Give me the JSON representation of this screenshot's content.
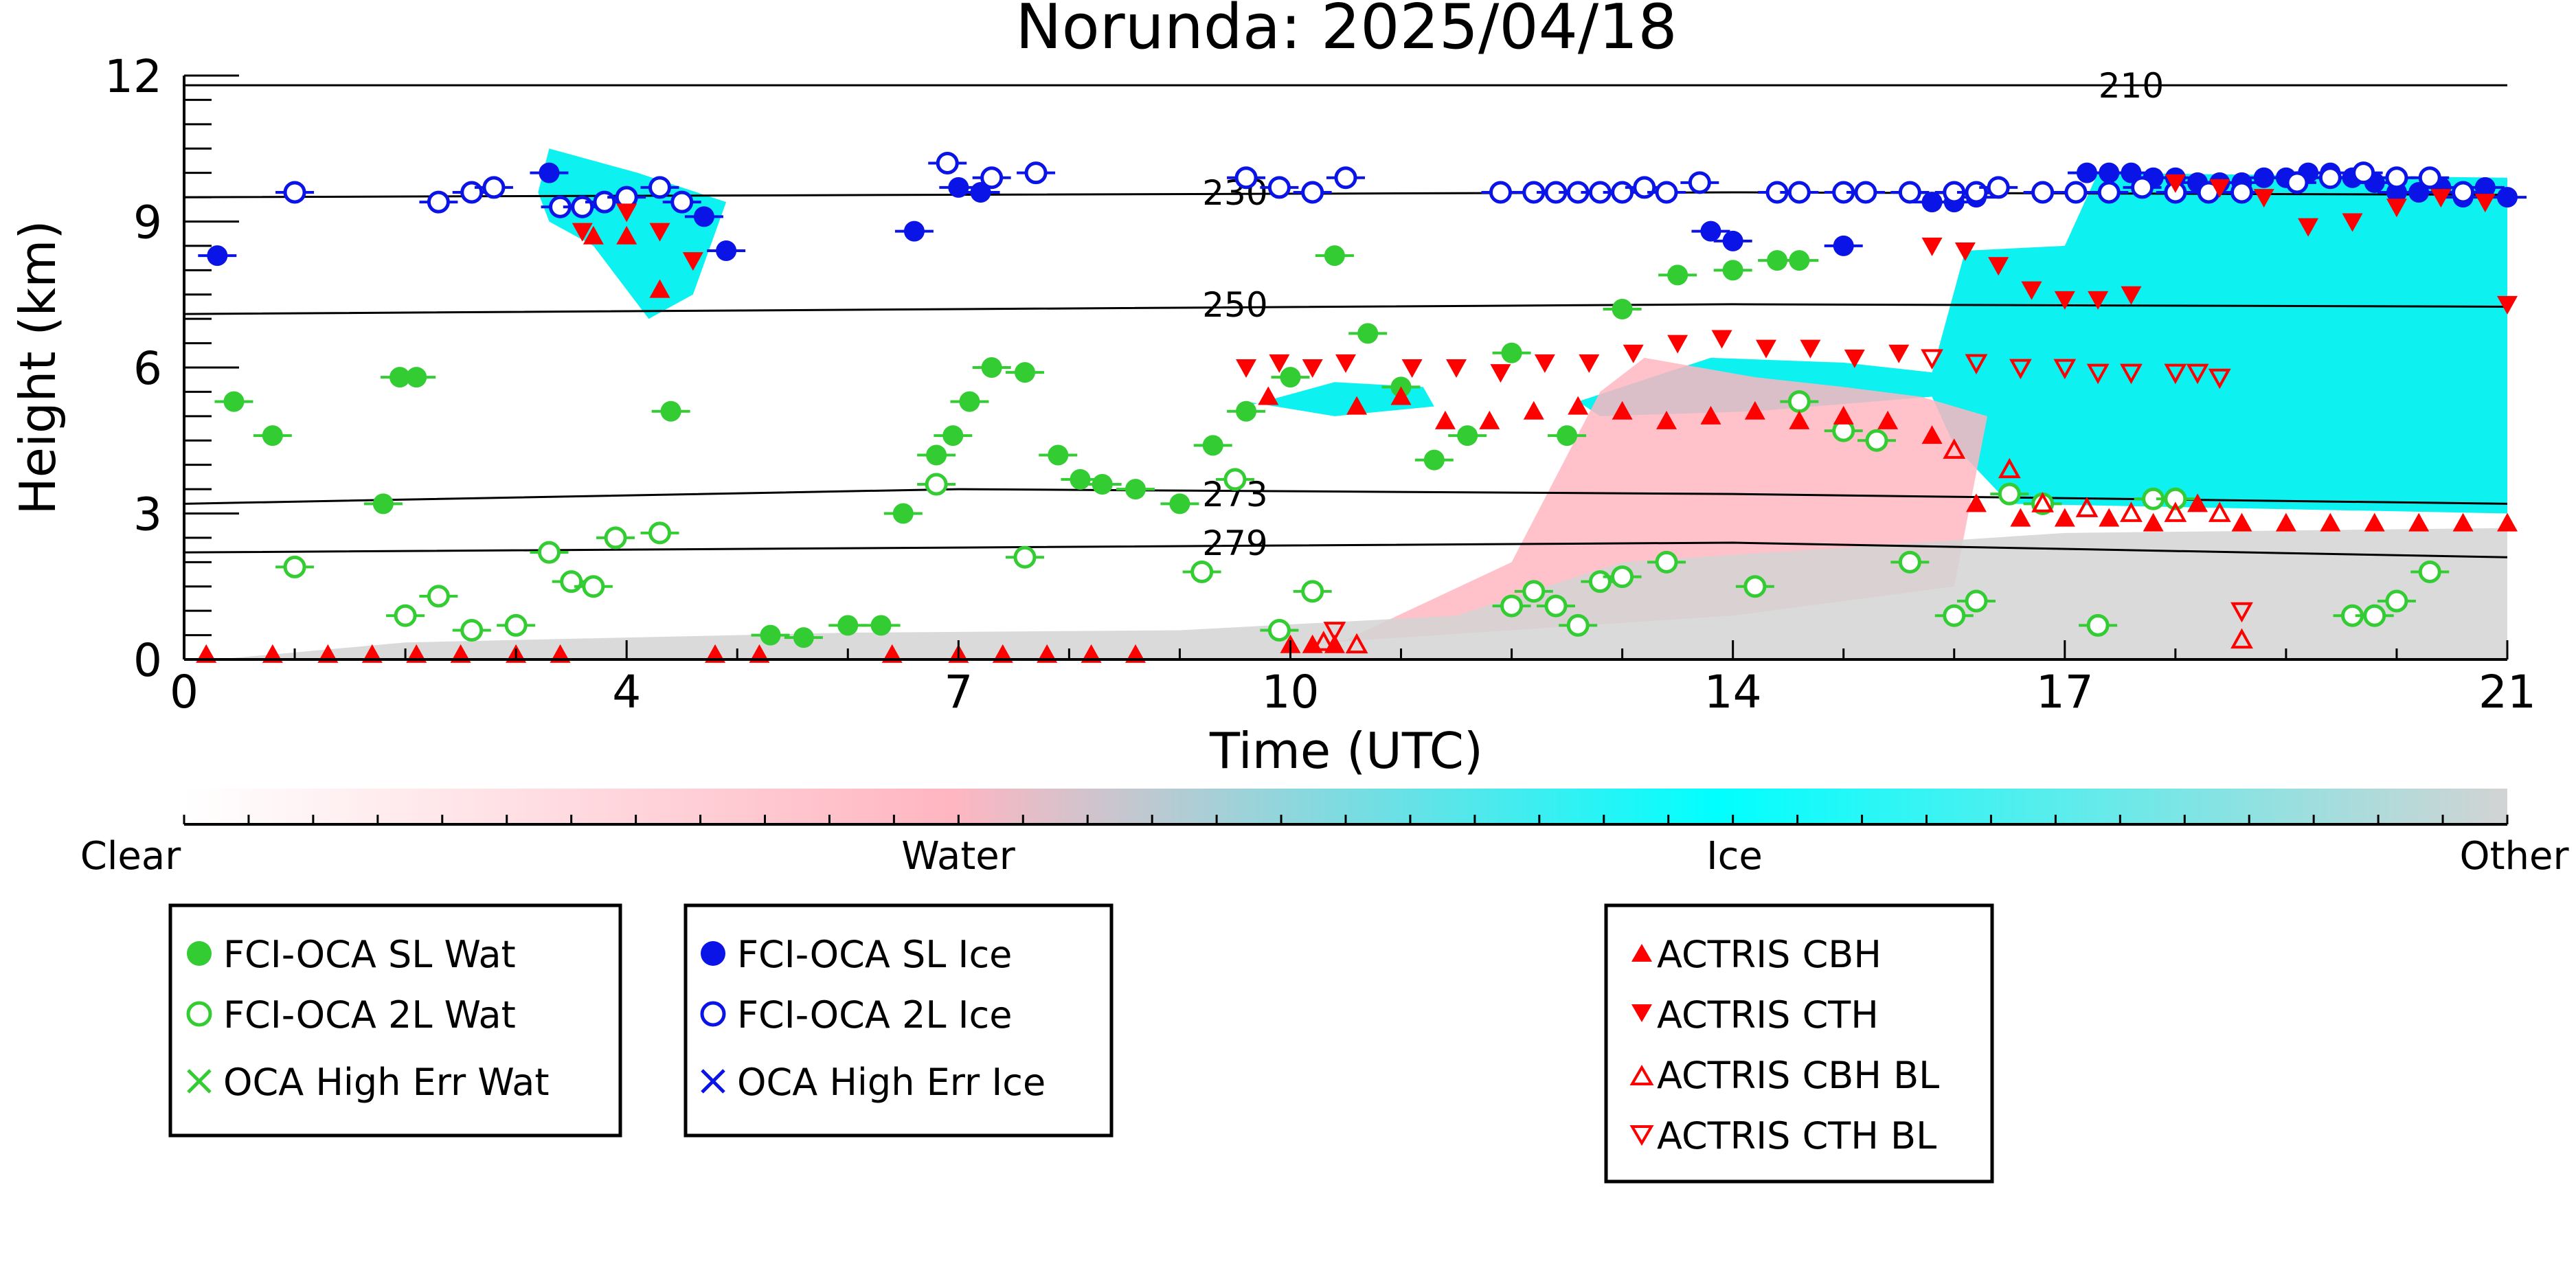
{
  "chart_data": {
    "type": "scatter",
    "title": "Norunda: 2025/04/18",
    "xlabel": "Time (UTC)",
    "ylabel": "Height (km)",
    "xlim": [
      0,
      21
    ],
    "ylim": [
      0,
      12
    ],
    "xticks": [
      0,
      4,
      7,
      10,
      14,
      17,
      21
    ],
    "yticks": [
      0,
      3,
      6,
      9,
      12
    ],
    "grid": false,
    "colorbar": {
      "labels": [
        "Clear",
        "Water",
        "Ice",
        "Other"
      ],
      "colors": [
        "#ffffff",
        "#ffb6c1",
        "#00ffff",
        "#d3d3d3"
      ]
    },
    "colors": {
      "water": "#33cc33",
      "ice": "#0a14e6",
      "actris": "#ff0000",
      "cloud_ice": "#00f0f0",
      "cloud_water": "#ffb6c1",
      "cloud_other": "#d3d3d3"
    },
    "isotherms": [
      {
        "label": "210",
        "label_x": 17.6,
        "y": [
          11.8,
          11.8,
          11.8,
          11.8
        ]
      },
      {
        "label": "230",
        "label_x": 9.5,
        "y": [
          9.5,
          9.55,
          9.6,
          9.55
        ]
      },
      {
        "label": "250",
        "label_x": 9.5,
        "y": [
          7.1,
          7.2,
          7.3,
          7.25
        ]
      },
      {
        "label": "273",
        "label_x": 9.5,
        "y": [
          3.2,
          3.5,
          3.4,
          3.2
        ]
      },
      {
        "label": "279",
        "label_x": 9.5,
        "y": [
          2.2,
          2.3,
          2.4,
          2.1
        ]
      }
    ],
    "isotherm_x": [
      0,
      7,
      14,
      21
    ],
    "series": [
      {
        "name": "FCI-OCA SL Wat",
        "marker": "filled-circle",
        "color": "#33cc33",
        "x": [
          0.45,
          0.8,
          1.8,
          1.95,
          2.1,
          4.4,
          5.3,
          5.6,
          6.0,
          6.3,
          6.5,
          6.8,
          6.95,
          7.1,
          7.3,
          7.6,
          7.9,
          8.1,
          8.3,
          8.6,
          9.0,
          9.3,
          9.6,
          10.0,
          10.4,
          10.7,
          11.0,
          11.3,
          11.6,
          12.0,
          12.5,
          13.0,
          13.5,
          14.0,
          14.4,
          14.6
        ],
        "y": [
          5.3,
          4.6,
          3.2,
          5.8,
          5.8,
          5.1,
          0.5,
          0.45,
          0.7,
          0.7,
          3.0,
          4.2,
          4.6,
          5.3,
          6.0,
          5.9,
          4.2,
          3.7,
          3.6,
          3.5,
          3.2,
          4.4,
          5.1,
          5.8,
          8.3,
          6.7,
          5.6,
          4.1,
          4.6,
          6.3,
          4.6,
          7.2,
          7.9,
          8.0,
          8.2,
          8.2
        ]
      },
      {
        "name": "FCI-OCA 2L Wat",
        "marker": "open-circle",
        "color": "#33cc33",
        "x": [
          1.0,
          2.0,
          2.3,
          2.6,
          3.0,
          3.3,
          3.5,
          3.7,
          3.9,
          4.3,
          6.8,
          7.6,
          9.2,
          9.5,
          9.9,
          10.2,
          12.0,
          12.2,
          12.4,
          12.6,
          12.8,
          13.0,
          13.4,
          14.2,
          14.6,
          15.0,
          15.3,
          15.6,
          16.0,
          16.2,
          16.5,
          16.8,
          17.3,
          17.8,
          18.0,
          19.6,
          19.8,
          20.0,
          20.3
        ],
        "y": [
          1.9,
          0.9,
          1.3,
          0.6,
          0.7,
          2.2,
          1.6,
          1.5,
          2.5,
          2.6,
          3.6,
          2.1,
          1.8,
          3.7,
          0.6,
          1.4,
          1.1,
          1.4,
          1.1,
          0.7,
          1.6,
          1.7,
          2.0,
          1.5,
          5.3,
          4.7,
          4.5,
          2.0,
          0.9,
          1.2,
          3.4,
          3.2,
          0.7,
          3.3,
          3.3,
          0.9,
          0.9,
          1.2,
          1.8
        ]
      },
      {
        "name": "OCA High Err Wat",
        "marker": "x",
        "color": "#33cc33",
        "x": [],
        "y": []
      },
      {
        "name": "FCI-OCA SL Ice",
        "marker": "filled-circle",
        "color": "#0a14e6",
        "x": [
          0.3,
          3.3,
          4.7,
          4.9,
          6.6,
          7.0,
          7.2,
          13.8,
          14.0,
          15.0,
          15.8,
          16.0,
          16.2,
          17.2,
          17.4,
          17.6,
          17.8,
          18.0,
          18.2,
          18.4,
          18.6,
          18.8,
          19.0,
          19.2,
          19.4,
          19.6,
          19.8,
          20.0,
          20.2,
          20.4,
          20.6,
          20.8,
          21.0
        ],
        "y": [
          8.3,
          10.0,
          9.1,
          8.4,
          8.8,
          9.7,
          9.6,
          8.8,
          8.6,
          8.5,
          9.4,
          9.4,
          9.5,
          10.0,
          10.0,
          10.0,
          9.9,
          9.9,
          9.8,
          9.8,
          9.8,
          9.9,
          9.9,
          10.0,
          10.0,
          9.9,
          9.8,
          9.6,
          9.6,
          9.7,
          9.5,
          9.7,
          9.5
        ]
      },
      {
        "name": "FCI-OCA 2L Ice",
        "marker": "open-circle",
        "color": "#0a14e6",
        "x": [
          1.0,
          2.3,
          2.6,
          2.8,
          3.4,
          3.6,
          3.8,
          4.0,
          4.3,
          4.5,
          6.9,
          7.3,
          7.7,
          9.6,
          9.9,
          10.2,
          10.5,
          11.9,
          12.2,
          12.4,
          12.6,
          12.8,
          13.0,
          13.2,
          13.4,
          13.7,
          14.4,
          14.6,
          15.0,
          15.2,
          15.6,
          16.0,
          16.2,
          16.4,
          16.8,
          17.1,
          17.4,
          17.7,
          18.0,
          18.3,
          18.6,
          19.1,
          19.4,
          19.7,
          20.0,
          20.3,
          20.6
        ],
        "y": [
          9.6,
          9.4,
          9.6,
          9.7,
          9.3,
          9.3,
          9.4,
          9.5,
          9.7,
          9.4,
          10.2,
          9.9,
          10.0,
          9.9,
          9.7,
          9.6,
          9.9,
          9.6,
          9.6,
          9.6,
          9.6,
          9.6,
          9.6,
          9.7,
          9.6,
          9.8,
          9.6,
          9.6,
          9.6,
          9.6,
          9.6,
          9.6,
          9.6,
          9.7,
          9.6,
          9.6,
          9.6,
          9.7,
          9.6,
          9.6,
          9.6,
          9.8,
          9.9,
          10.0,
          9.9,
          9.9,
          9.6
        ]
      },
      {
        "name": "OCA High Err Ice",
        "marker": "x",
        "color": "#0a14e6",
        "x": [],
        "y": []
      },
      {
        "name": "ACTRIS CBH",
        "marker": "triangle-up",
        "color": "#ff0000",
        "x": [
          0.2,
          0.8,
          1.3,
          1.7,
          2.1,
          2.5,
          3.0,
          3.4,
          3.7,
          4.0,
          4.3,
          4.8,
          5.2,
          6.4,
          7.0,
          7.4,
          7.8,
          8.2,
          8.6,
          9.8,
          10.0,
          10.2,
          10.4,
          10.6,
          11.0,
          11.4,
          11.8,
          12.2,
          12.6,
          13.0,
          13.4,
          13.8,
          14.2,
          14.6,
          15.0,
          15.4,
          15.8,
          16.2,
          16.6,
          17.0,
          17.4,
          17.8,
          18.2,
          18.6,
          19.0,
          19.4,
          19.8,
          20.2,
          20.6,
          21.0
        ],
        "y": [
          0.1,
          0.1,
          0.1,
          0.1,
          0.1,
          0.1,
          0.1,
          0.1,
          8.7,
          8.7,
          7.6,
          0.1,
          0.1,
          0.1,
          0.1,
          0.1,
          0.1,
          0.1,
          0.1,
          5.4,
          0.3,
          0.3,
          0.3,
          5.2,
          5.4,
          4.9,
          4.9,
          5.1,
          5.2,
          5.1,
          4.9,
          5.0,
          5.1,
          4.9,
          5.0,
          4.9,
          4.6,
          3.2,
          2.9,
          2.9,
          2.9,
          2.8,
          3.2,
          2.8,
          2.8,
          2.8,
          2.8,
          2.8,
          2.8,
          2.8
        ]
      },
      {
        "name": "ACTRIS CTH",
        "marker": "triangle-down",
        "color": "#ff0000",
        "x": [
          3.6,
          4.0,
          4.3,
          4.6,
          9.6,
          9.9,
          10.2,
          10.5,
          11.1,
          11.5,
          11.9,
          12.3,
          12.7,
          13.1,
          13.5,
          13.9,
          14.3,
          14.7,
          15.1,
          15.5,
          15.8,
          16.1,
          16.4,
          16.7,
          17.0,
          17.3,
          17.6,
          18.0,
          18.4,
          18.8,
          19.2,
          19.6,
          20.0,
          20.4,
          20.8,
          21.0
        ],
        "y": [
          8.8,
          9.2,
          8.8,
          8.2,
          6.0,
          6.1,
          6.0,
          6.1,
          6.0,
          6.0,
          5.9,
          6.1,
          6.1,
          6.3,
          6.5,
          6.6,
          6.4,
          6.4,
          6.2,
          6.3,
          8.5,
          8.4,
          8.1,
          7.6,
          7.4,
          7.4,
          7.5,
          9.8,
          9.7,
          9.5,
          8.9,
          9.0,
          9.3,
          9.5,
          9.4,
          7.3
        ]
      },
      {
        "name": "ACTRIS CBH BL",
        "marker": "open-triangle-up",
        "color": "#ff0000",
        "x": [
          10.3,
          10.6,
          16.0,
          16.5,
          16.8,
          17.2,
          17.6,
          18.0,
          18.4,
          18.6
        ],
        "y": [
          0.35,
          0.3,
          4.3,
          3.9,
          3.2,
          3.1,
          3.0,
          3.0,
          3.0,
          0.4
        ]
      },
      {
        "name": "ACTRIS CTH BL",
        "marker": "open-triangle-down",
        "color": "#ff0000",
        "x": [
          10.4,
          15.8,
          16.2,
          16.6,
          17.0,
          17.3,
          17.6,
          18.0,
          18.2,
          18.4,
          18.6
        ],
        "y": [
          0.6,
          6.2,
          6.1,
          6.0,
          6.0,
          5.9,
          5.9,
          5.9,
          5.9,
          5.8,
          1.0
        ]
      }
    ],
    "cloud_regions": [
      {
        "type": "ice",
        "points": [
          [
            3.2,
            9.6
          ],
          [
            3.3,
            10.5
          ],
          [
            4.1,
            10.0
          ],
          [
            4.9,
            9.4
          ],
          [
            4.6,
            7.5
          ],
          [
            4.2,
            7.0
          ],
          [
            3.7,
            8.5
          ],
          [
            3.3,
            9.0
          ]
        ]
      },
      {
        "type": "ice",
        "points": [
          [
            9.6,
            5.2
          ],
          [
            10.4,
            5.7
          ],
          [
            11.2,
            5.6
          ],
          [
            11.3,
            5.2
          ],
          [
            10.4,
            5.0
          ],
          [
            9.6,
            5.3
          ]
        ]
      },
      {
        "type": "ice",
        "points": [
          [
            12.6,
            5.3
          ],
          [
            13.8,
            6.2
          ],
          [
            15.0,
            6.1
          ],
          [
            15.8,
            5.9
          ],
          [
            16.1,
            8.4
          ],
          [
            17.0,
            8.5
          ],
          [
            17.3,
            10.0
          ],
          [
            21.0,
            9.9
          ],
          [
            21.0,
            3.0
          ],
          [
            16.5,
            3.2
          ],
          [
            16.0,
            4.4
          ],
          [
            15.8,
            5.4
          ],
          [
            14.2,
            5.1
          ],
          [
            12.8,
            5.0
          ]
        ]
      },
      {
        "type": "water",
        "points": [
          [
            10.0,
            0.3
          ],
          [
            14.0,
            0.9
          ],
          [
            16.0,
            1.5
          ],
          [
            16.3,
            5.0
          ],
          [
            15.7,
            5.4
          ],
          [
            15.0,
            5.6
          ],
          [
            14.2,
            5.8
          ],
          [
            13.2,
            6.2
          ],
          [
            12.8,
            5.5
          ],
          [
            12.0,
            2.0
          ],
          [
            10.5,
            0.4
          ]
        ]
      },
      {
        "type": "other",
        "points": [
          [
            0.3,
            0.0
          ],
          [
            2.0,
            0.35
          ],
          [
            6.0,
            0.55
          ],
          [
            9.0,
            0.6
          ],
          [
            11.5,
            0.9
          ],
          [
            13.0,
            2.0
          ],
          [
            15.0,
            2.3
          ],
          [
            17.0,
            2.6
          ],
          [
            21.0,
            2.7
          ],
          [
            21.0,
            0.0
          ]
        ]
      }
    ]
  },
  "legend_water": {
    "sl": "FCI-OCA SL Wat",
    "tl": "FCI-OCA 2L Wat",
    "err": "OCA High Err Wat"
  },
  "legend_ice": {
    "sl": "FCI-OCA SL Ice",
    "tl": "FCI-OCA 2L Ice",
    "err": "OCA High Err Ice"
  },
  "legend_actris": {
    "cbh": "ACTRIS CBH",
    "cth": "ACTRIS CTH",
    "cbh_bl": "ACTRIS CBH BL",
    "cth_bl": "ACTRIS CTH BL"
  }
}
